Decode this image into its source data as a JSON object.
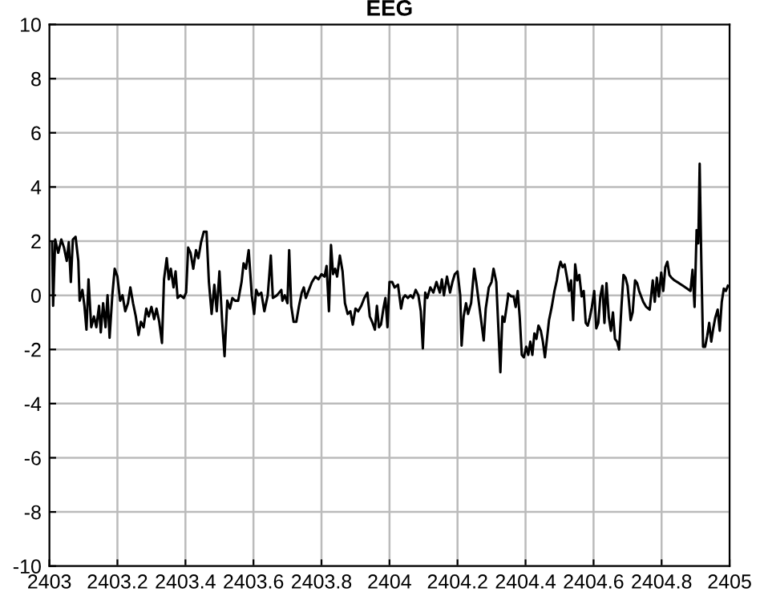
{
  "chart_data": {
    "type": "line",
    "title": "EEG",
    "grid": true,
    "marker": "none",
    "line_style": "solid",
    "xlim": [
      2403,
      2405
    ],
    "xticks": [
      2403,
      2403.2,
      2403.4,
      2403.6,
      2403.8,
      2404,
      2404.2,
      2404.4,
      2404.6,
      2404.8,
      2405
    ],
    "ylim": [
      -10,
      10
    ],
    "yticks": [
      -10,
      -8,
      -6,
      -4,
      -2,
      0,
      2,
      4,
      6,
      8,
      10
    ],
    "series": [
      {
        "color": "#000000",
        "x": [
          2403.008,
          2403.011,
          2403.017,
          2403.026,
          2403.035,
          2403.043,
          2403.051,
          2403.057,
          2403.063,
          2403.069,
          2403.077,
          2403.085,
          2403.089,
          2403.097,
          2403.103,
          2403.109,
          2403.115,
          2403.123,
          2403.131,
          2403.138,
          2403.146,
          2403.151,
          2403.158,
          2403.165,
          2403.171,
          2403.177,
          2403.185,
          2403.192,
          2403.2,
          2403.208,
          2403.215,
          2403.223,
          2403.231,
          2403.238,
          2403.246,
          2403.254,
          2403.262,
          2403.269,
          2403.277,
          2403.285,
          2403.292,
          2403.3,
          2403.308,
          2403.315,
          2403.323,
          2403.331,
          2403.337,
          2403.345,
          2403.351,
          2403.357,
          2403.365,
          2403.371,
          2403.377,
          2403.385,
          2403.395,
          2403.402,
          2403.408,
          2403.415,
          2403.423,
          2403.431,
          2403.438,
          2403.446,
          2403.454,
          2403.462,
          2403.469,
          2403.477,
          2403.485,
          2403.492,
          2403.5,
          2403.508,
          2403.515,
          2403.523,
          2403.531,
          2403.538,
          2403.546,
          2403.555,
          2403.565,
          2403.571,
          2403.578,
          2403.586,
          2403.595,
          2403.602,
          2403.608,
          2403.615,
          2403.623,
          2403.632,
          2403.642,
          2403.651,
          2403.657,
          2403.669,
          2403.682,
          2403.685,
          2403.692,
          2403.7,
          2403.705,
          2403.711,
          2403.718,
          2403.726,
          2403.734,
          2403.742,
          2403.748,
          2403.754,
          2403.763,
          2403.772,
          2403.782,
          2403.791,
          2403.8,
          2403.809,
          2403.815,
          2403.822,
          2403.828,
          2403.834,
          2403.84,
          2403.846,
          2403.854,
          2403.862,
          2403.869,
          2403.877,
          2403.885,
          2403.892,
          2403.9,
          2403.908,
          2403.917,
          2403.926,
          2403.935,
          2403.942,
          2403.949,
          2403.957,
          2403.963,
          2403.969,
          2403.975,
          2403.982,
          2403.988,
          2403.994,
          2404.0,
          2404.008,
          2404.015,
          2404.025,
          2404.034,
          2404.04,
          2404.046,
          2404.054,
          2404.062,
          2404.069,
          2404.077,
          2404.085,
          2404.092,
          2404.098,
          2404.105,
          2404.111,
          2404.12,
          2404.129,
          2404.138,
          2404.148,
          2404.154,
          2404.16,
          2404.169,
          2404.178,
          2404.185,
          2404.192,
          2404.2,
          2404.208,
          2404.212,
          2404.218,
          2404.225,
          2404.231,
          2404.24,
          2404.249,
          2404.255,
          2404.262,
          2404.268,
          2404.277,
          2404.283,
          2404.292,
          2404.3,
          2404.306,
          2404.314,
          2404.32,
          2404.326,
          2404.332,
          2404.338,
          2404.348,
          2404.349,
          2404.358,
          2404.365,
          2404.371,
          2404.377,
          2404.383,
          2404.389,
          2404.395,
          2404.402,
          2404.408,
          2404.414,
          2404.42,
          2404.426,
          2404.432,
          2404.438,
          2404.445,
          2404.451,
          2404.457,
          2404.463,
          2404.469,
          2404.477,
          2404.485,
          2404.492,
          2404.497,
          2404.503,
          2404.509,
          2404.515,
          2404.522,
          2404.528,
          2404.534,
          2404.54,
          2404.546,
          2404.552,
          2404.558,
          2404.565,
          2404.571,
          2404.577,
          2404.583,
          2404.589,
          2404.595,
          2404.602,
          2404.608,
          2404.614,
          2404.62,
          2404.626,
          2404.632,
          2404.638,
          2404.645,
          2404.651,
          2404.657,
          2404.663,
          2404.669,
          2404.675,
          2404.682,
          2404.688,
          2404.694,
          2404.7,
          2404.709,
          2404.715,
          2404.722,
          2404.728,
          2404.734,
          2404.74,
          2404.746,
          2404.755,
          2404.765,
          2404.774,
          2404.78,
          2404.786,
          2404.792,
          2404.799,
          2404.805,
          2404.811,
          2404.817,
          2404.823,
          2404.829,
          2404.838,
          2404.851,
          2404.863,
          2404.875,
          2404.885,
          2404.891,
          2404.897,
          2404.903,
          2404.908,
          2404.912,
          2404.917,
          2404.922,
          2404.928,
          2404.934,
          2404.94,
          2404.946,
          2404.952,
          2404.958,
          2404.965,
          2404.971,
          2404.977,
          2404.983,
          2404.989,
          2404.995
        ],
        "values": [
          1.96,
          -0.39,
          2.06,
          1.57,
          2.06,
          1.76,
          1.27,
          1.96,
          0.49,
          2.06,
          2.16,
          1.27,
          -0.2,
          0.2,
          -0.39,
          -1.27,
          0.59,
          -1.18,
          -0.78,
          -1.18,
          -0.39,
          -1.37,
          -0.29,
          -1.18,
          0,
          -1.57,
          0,
          0.98,
          0.69,
          -0.2,
          0,
          -0.59,
          -0.29,
          0.29,
          -0.29,
          -0.78,
          -1.47,
          -0.98,
          -1.18,
          -0.49,
          -0.78,
          -0.43,
          -0.88,
          -0.49,
          -0.98,
          -1.76,
          0.59,
          1.37,
          0.59,
          0.98,
          0.29,
          0.88,
          -0.1,
          0,
          -0.1,
          0.1,
          1.76,
          1.57,
          0.98,
          1.67,
          1.37,
          1.96,
          2.35,
          2.35,
          0.49,
          -0.69,
          0.39,
          -0.59,
          0.88,
          -0.98,
          -2.25,
          -0.2,
          -0.49,
          -0.1,
          -0.2,
          -0.2,
          0.49,
          1.18,
          0.98,
          1.67,
          0,
          -0.69,
          0.2,
          0,
          0.1,
          -0.59,
          0,
          1.47,
          -0.1,
          0,
          0.2,
          -0.2,
          0,
          -0.29,
          1.67,
          -0.39,
          -0.98,
          -0.98,
          -0.39,
          0.1,
          0.29,
          -0.1,
          0.2,
          0.49,
          0.69,
          0.59,
          0.78,
          0.69,
          1.08,
          -0.59,
          1.86,
          0.78,
          0.98,
          0.69,
          1.47,
          0.88,
          -0.29,
          -0.69,
          -0.59,
          -1.08,
          -0.49,
          -0.59,
          -0.39,
          -0.1,
          0.1,
          -0.78,
          -0.98,
          -1.27,
          -0.39,
          -1.18,
          -1.08,
          -0.49,
          -0.1,
          -1.18,
          0.49,
          0.49,
          0.29,
          0.39,
          -0.49,
          -0.1,
          0,
          -0.1,
          0,
          -0.1,
          0.2,
          0,
          -0.59,
          -1.96,
          0.1,
          -0.1,
          0.29,
          0.1,
          0.49,
          0.1,
          0.59,
          0,
          0.69,
          0.1,
          0.49,
          0.78,
          0.88,
          0,
          -1.86,
          -0.78,
          -0.29,
          -0.69,
          -0.29,
          0.98,
          0.49,
          -0.2,
          -0.78,
          -1.67,
          -0.49,
          0.29,
          0.49,
          0.98,
          0.49,
          -1.18,
          -2.84,
          -0.78,
          -0.98,
          -0.1,
          0.06,
          -0.04,
          -0.04,
          -0.43,
          0.16,
          -0.82,
          -2.2,
          -2.29,
          -1.9,
          -2.2,
          -1.71,
          -2.2,
          -1.41,
          -1.61,
          -1.12,
          -1.31,
          -1.71,
          -2.29,
          -1.61,
          -0.92,
          -0.43,
          0.16,
          0.55,
          0.94,
          1.24,
          1.04,
          1.14,
          0.65,
          0.16,
          0.55,
          -0.92,
          1.14,
          0.55,
          0.75,
          -0.04,
          0.16,
          -1.02,
          -1.12,
          -0.82,
          -0.43,
          0.16,
          -1.22,
          -1.02,
          -0.04,
          0.35,
          -1.02,
          0.45,
          -0.82,
          -1.31,
          -0.63,
          -1.61,
          -1.71,
          -2.0,
          -0.43,
          0.75,
          0.65,
          0.35,
          -0.92,
          -0.63,
          0.55,
          0.45,
          0.16,
          -0.04,
          -0.24,
          -0.43,
          -0.53,
          0.55,
          -0.24,
          0.65,
          -0.04,
          0.84,
          0.16,
          1.04,
          1.24,
          0.75,
          0.65,
          0.55,
          0.45,
          0.35,
          0.25,
          0.16,
          0.94,
          -0.43,
          2.41,
          1.92,
          4.86,
          1.14,
          -1.9,
          -1.9,
          -1.51,
          -1.02,
          -1.71,
          -1.22,
          -0.82,
          -0.53,
          -1.31,
          -0.24,
          0.25,
          0.16,
          0.35
        ]
      }
    ]
  }
}
